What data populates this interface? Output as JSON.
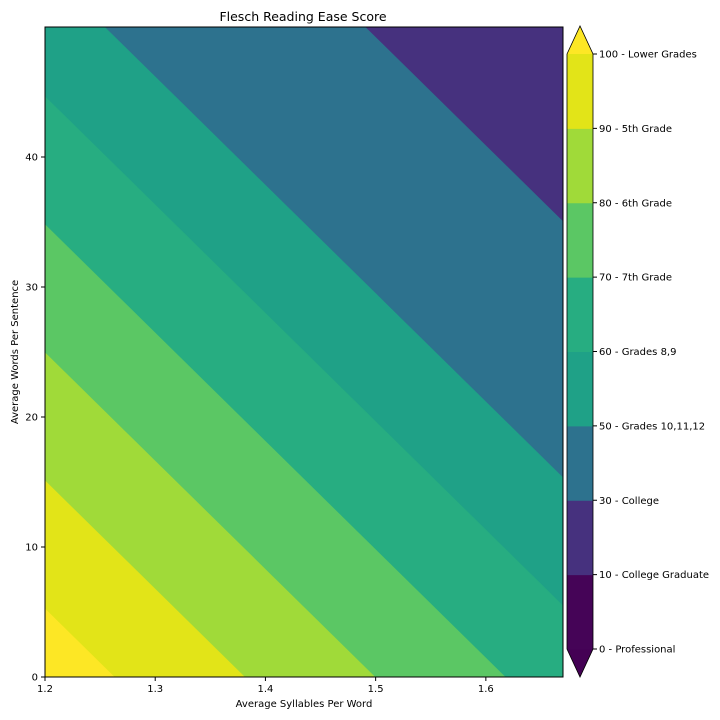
{
  "chart_data": {
    "type": "contour",
    "title": "Flesch Reading Ease Score",
    "xlabel": "Average Syllables Per Word",
    "ylabel": "Average Words Per Sentence",
    "xlim": [
      1.2,
      1.67
    ],
    "ylim": [
      0,
      50
    ],
    "x_ticks": [
      1.2,
      1.3,
      1.4,
      1.5,
      1.6
    ],
    "y_ticks": [
      0,
      10,
      20,
      30,
      40
    ],
    "grid": false,
    "formula": {
      "base": 206.835,
      "x_coef": 84.6,
      "y_coef": 1.015
    },
    "levels": [
      0,
      10,
      30,
      50,
      60,
      70,
      80,
      90,
      100
    ],
    "level_labels": [
      "0 - Professional",
      "10 - College Graduate",
      "30 - College",
      "50 - Grades 10,11,12",
      "60 - Grades 8,9",
      "70 - 7th Grade",
      "80 - 6th Grade",
      "90 - 5th Grade",
      "100 - Lower Grades"
    ],
    "colormap": "viridis",
    "band_colors": [
      "#450457",
      "#46317e",
      "#2d728e",
      "#1fa187",
      "#27ad81",
      "#5bc764",
      "#a0da39",
      "#e2e418"
    ],
    "under_color": "#440154",
    "over_color": "#fde725",
    "colorbar_extend": "both"
  }
}
